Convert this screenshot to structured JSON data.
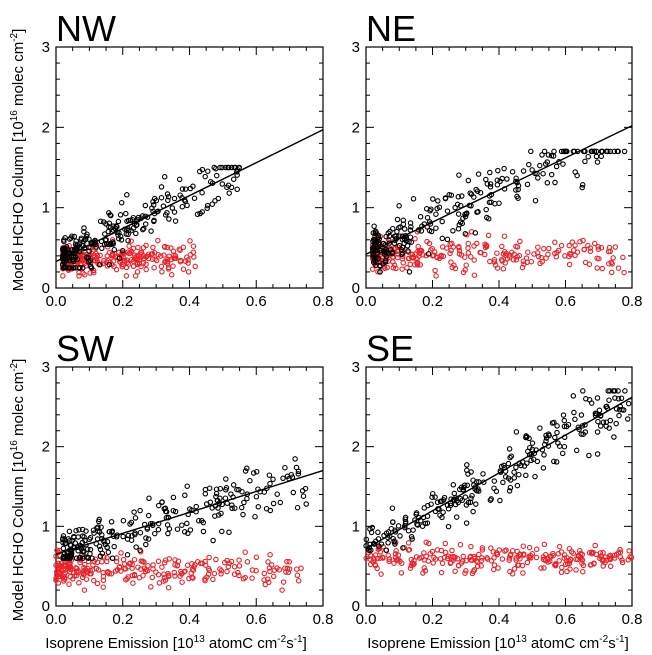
{
  "figure": {
    "ylabel": "Model HCHO Column [10",
    "ylabel_exp": "16",
    "ylabel_tail": " molec cm",
    "ylabel_tail_exp": "-2",
    "ylabel_end": "]",
    "xlabel": "Isoprene Emission [10",
    "xlabel_exp": "13",
    "xlabel_tail": " atomC cm",
    "xlabel_tail_exp": "-2",
    "xlabel_mid": "s",
    "xlabel_mid_exp": "-1",
    "xlabel_end": "]",
    "colors": {
      "black_series": "#000000",
      "red_series": "#e8232a",
      "axis": "#000000"
    }
  },
  "chart_data": [
    {
      "type": "scatter",
      "title": "NW",
      "xlim": [
        0.0,
        0.8
      ],
      "ylim": [
        0,
        3
      ],
      "xticks": [
        "0.0",
        "0.2",
        "0.4",
        "0.6",
        "0.8"
      ],
      "yticks": [
        "0",
        "1",
        "2",
        "3"
      ],
      "series": [
        {
          "color": "#000000",
          "x_range": [
            0.02,
            0.55
          ],
          "y_approx_range": [
            0.25,
            1.5
          ]
        },
        {
          "color": "#e8232a",
          "x_range": [
            0.02,
            0.42
          ],
          "y_approx_range": [
            0.15,
            0.6
          ]
        }
      ],
      "fit_line": {
        "x": [
          0.0,
          0.8
        ],
        "y": [
          0.33,
          1.97
        ]
      }
    },
    {
      "type": "scatter",
      "title": "NE",
      "xlim": [
        0.0,
        0.8
      ],
      "ylim": [
        0,
        3
      ],
      "xticks": [
        "0.0",
        "0.2",
        "0.4",
        "0.6",
        "0.8"
      ],
      "yticks": [
        "0",
        "1",
        "2",
        "3"
      ],
      "series": [
        {
          "color": "#000000",
          "x_range": [
            0.02,
            0.78
          ],
          "y_approx_range": [
            0.2,
            1.7
          ]
        },
        {
          "color": "#e8232a",
          "x_range": [
            0.02,
            0.78
          ],
          "y_approx_range": [
            0.15,
            0.7
          ]
        }
      ],
      "fit_line": {
        "x": [
          0.0,
          0.8
        ],
        "y": [
          0.42,
          2.02
        ]
      }
    },
    {
      "type": "scatter",
      "title": "SW",
      "xlim": [
        0.0,
        0.8
      ],
      "ylim": [
        0,
        3
      ],
      "xticks": [
        "0.0",
        "0.2",
        "0.4",
        "0.6",
        "0.8"
      ],
      "yticks": [
        "0",
        "1",
        "2",
        "3"
      ],
      "series": [
        {
          "color": "#000000",
          "x_range": [
            0.02,
            0.75
          ],
          "y_approx_range": [
            0.6,
            1.9
          ]
        },
        {
          "color": "#e8232a",
          "x_range": [
            0.0,
            0.75
          ],
          "y_approx_range": [
            0.2,
            0.7
          ]
        }
      ],
      "fit_line": {
        "x": [
          0.0,
          0.8
        ],
        "y": [
          0.65,
          1.7
        ]
      }
    },
    {
      "type": "scatter",
      "title": "SE",
      "xlim": [
        0.0,
        0.8
      ],
      "ylim": [
        0,
        3
      ],
      "xticks": [
        "0.0",
        "0.2",
        "0.4",
        "0.6",
        "0.8"
      ],
      "yticks": [
        "0",
        "1",
        "2",
        "3"
      ],
      "series": [
        {
          "color": "#000000",
          "x_range": [
            0.0,
            0.8
          ],
          "y_approx_range": [
            0.7,
            2.7
          ]
        },
        {
          "color": "#e8232a",
          "x_range": [
            0.0,
            0.8
          ],
          "y_approx_range": [
            0.4,
            0.8
          ]
        }
      ],
      "fit_line": {
        "x": [
          0.0,
          0.8
        ],
        "y": [
          0.72,
          2.62
        ]
      }
    }
  ]
}
